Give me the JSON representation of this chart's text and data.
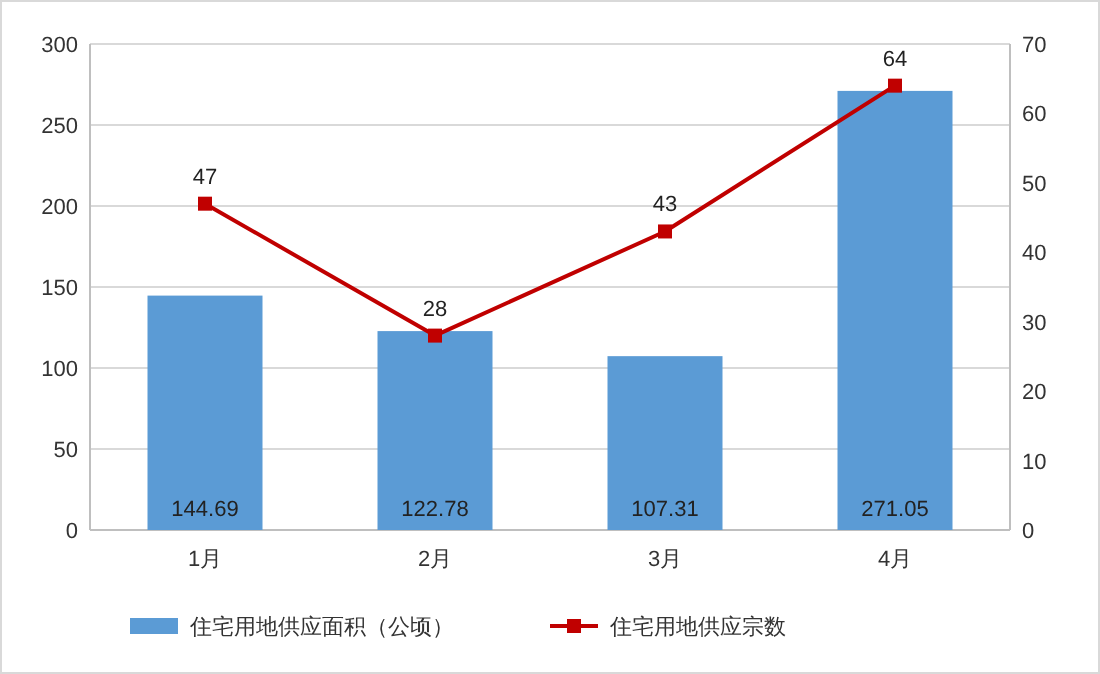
{
  "chart_data": {
    "type": "bar",
    "categories": [
      "1月",
      "2月",
      "3月",
      "4月"
    ],
    "series": [
      {
        "name": "住宅用地供应面积（公顷）",
        "color": "#5b9bd5",
        "values": [
          144.69,
          122.78,
          107.31,
          271.05
        ]
      },
      {
        "name": "住宅用地供应宗数",
        "type": "line",
        "axis": "y2",
        "color": "#c00000",
        "values": [
          47,
          28,
          43,
          64
        ],
        "marker": "square"
      }
    ],
    "ylim": [
      0,
      300
    ],
    "yticks": [
      0,
      50,
      100,
      150,
      200,
      250,
      300
    ],
    "y2lim": [
      0,
      70
    ],
    "y2ticks": [
      0,
      10,
      20,
      30,
      40,
      50,
      60,
      70
    ],
    "grid": "y",
    "legend": "bottom",
    "data_labels": true
  }
}
